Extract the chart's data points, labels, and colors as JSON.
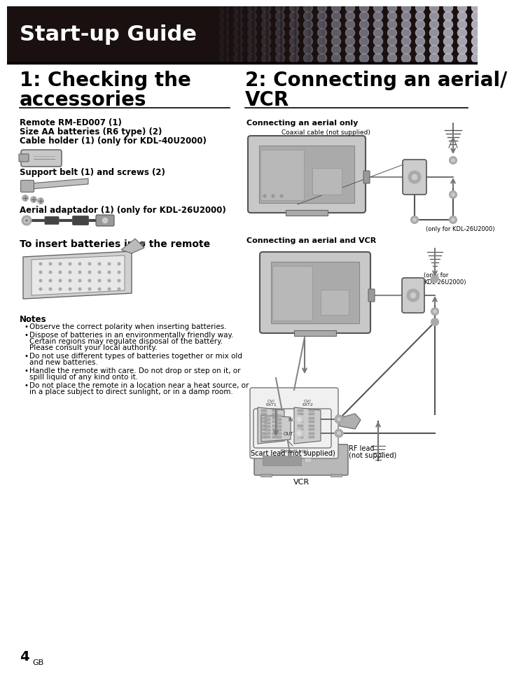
{
  "header_text": "Start-up Guide",
  "header_font_size": 22,
  "header_text_color": "#ffffff",
  "page_bg": "#ffffff",
  "section1_title_line1": "1: Checking the",
  "section1_title_line2": "accessories",
  "section2_title_line1": "2: Connecting an aerial/",
  "section2_title_line2": "VCR",
  "section_title_size": 20,
  "accessories_items": [
    "Remote RM-ED007 (1)",
    "Size AA batteries (R6 type) (2)",
    "Cable holder (1) (only for KDL-40U2000)"
  ],
  "support_belt_label": "Support belt (1) and screws (2)",
  "aerial_adapt_label": "Aerial adaptador (1) (only for KDL-26U2000)",
  "bold_items_font_size": 8.5,
  "subsection_title": "To insert batteries into the remote",
  "subsection_title_size": 10,
  "notes_title": "Notes",
  "notes_font_size": 7.5,
  "aerial_only_label": "Connecting an aerial only",
  "aerial_vcr_label": "Connecting an aerial and VCR",
  "coaxial_label": "Coaxial cable (not supplied)",
  "only_kdl26_label": "(only for KDL-26U2000)",
  "only_kdl26_label2_line1": "(only for",
  "only_kdl26_label2_line2": "KDL-26U2000)",
  "scart_label": "Scart lead (not supplied)",
  "rf_label_line1": "RF lead",
  "rf_label_line2": "(not supplied)",
  "vcr_label": "VCR",
  "page_number": "4",
  "page_number_size": 14,
  "gb_label": "GB",
  "gb_font_size": 8
}
